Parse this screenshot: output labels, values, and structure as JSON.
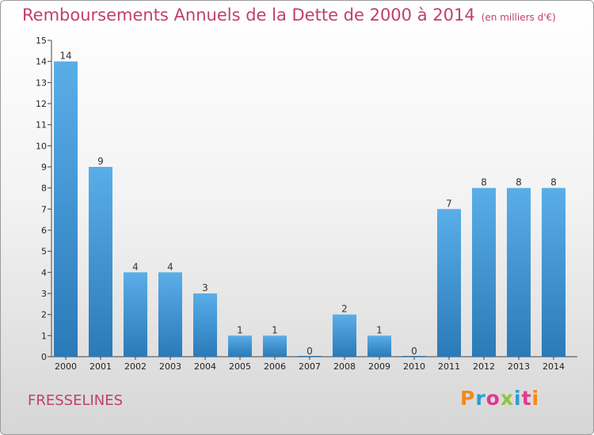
{
  "header": {
    "title": "Remboursements Annuels de la Dette de 2000 à 2014",
    "unit": "(en milliers d'€)"
  },
  "footer": {
    "commune": "FRESSELINES",
    "logo": [
      "P",
      "r",
      "o",
      "x",
      "i",
      "t",
      "i"
    ],
    "logo_colors": [
      "#f08a1c",
      "#2b9bd7",
      "#e03a8f",
      "#8cc63f",
      "#2b9bd7",
      "#e03a8f",
      "#f08a1c"
    ]
  },
  "chart_data": {
    "type": "bar",
    "categories": [
      "2000",
      "2001",
      "2002",
      "2003",
      "2004",
      "2005",
      "2006",
      "2007",
      "2008",
      "2009",
      "2010",
      "2011",
      "2012",
      "2013",
      "2014"
    ],
    "values": [
      14,
      9,
      4,
      4,
      3,
      1,
      1,
      0,
      2,
      1,
      0,
      7,
      8,
      8,
      8
    ],
    "value_labels": [
      "14",
      "9",
      "4",
      "4",
      "3",
      "1",
      "1",
      "0",
      "2",
      "1",
      "0",
      "7",
      "8",
      "8",
      "8"
    ],
    "yticks": [
      "0",
      "1",
      "2",
      "3",
      "4",
      "5",
      "6",
      "7",
      "8",
      "9",
      "10",
      "11",
      "12",
      "13",
      "14",
      "15"
    ],
    "ylim": [
      0,
      15
    ],
    "bar_color_top": "#5aaee8",
    "bar_color_bottom": "#2a7ab8",
    "grid": false
  }
}
